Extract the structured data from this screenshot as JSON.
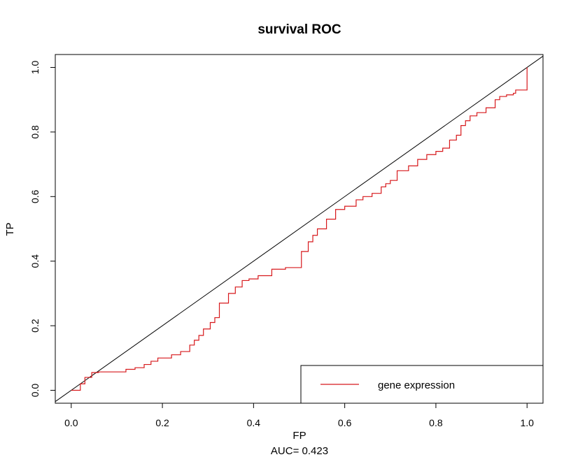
{
  "chart_data": {
    "type": "line",
    "title": "survival ROC",
    "xlabel": "FP",
    "ylabel": "TP",
    "subtitle": "AUC= 0.423",
    "xlim": [
      -0.035,
      1.035
    ],
    "ylim": [
      -0.04,
      1.04
    ],
    "x_ticks": [
      0.0,
      0.2,
      0.4,
      0.6,
      0.8,
      1.0
    ],
    "x_tick_labels": [
      "0.0",
      "0.2",
      "0.4",
      "0.6",
      "0.8",
      "1.0"
    ],
    "y_ticks": [
      0.0,
      0.2,
      0.4,
      0.6,
      0.8,
      1.0
    ],
    "y_tick_labels": [
      "0.0",
      "0.2",
      "0.4",
      "0.6",
      "0.8",
      "1.0"
    ],
    "grid": false,
    "legend": {
      "placement": "bottom-right",
      "entries": [
        {
          "label": "gene expression",
          "color": "#d7191c"
        }
      ]
    },
    "reference_line": {
      "x": [
        0,
        1
      ],
      "y": [
        0,
        1
      ],
      "color": "#000000"
    },
    "series": [
      {
        "name": "gene expression",
        "color": "#d7191c",
        "x": [
          0.0,
          0.02,
          0.02,
          0.03,
          0.03,
          0.045,
          0.045,
          0.06,
          0.06,
          0.12,
          0.12,
          0.14,
          0.14,
          0.16,
          0.16,
          0.175,
          0.175,
          0.19,
          0.19,
          0.22,
          0.22,
          0.24,
          0.24,
          0.26,
          0.26,
          0.27,
          0.27,
          0.28,
          0.28,
          0.29,
          0.29,
          0.305,
          0.305,
          0.315,
          0.315,
          0.325,
          0.325,
          0.345,
          0.345,
          0.36,
          0.36,
          0.375,
          0.375,
          0.39,
          0.39,
          0.41,
          0.41,
          0.44,
          0.44,
          0.47,
          0.47,
          0.505,
          0.505,
          0.52,
          0.52,
          0.53,
          0.53,
          0.54,
          0.54,
          0.56,
          0.56,
          0.58,
          0.58,
          0.6,
          0.6,
          0.625,
          0.625,
          0.64,
          0.64,
          0.66,
          0.66,
          0.68,
          0.68,
          0.69,
          0.69,
          0.7,
          0.7,
          0.715,
          0.715,
          0.74,
          0.74,
          0.76,
          0.76,
          0.78,
          0.78,
          0.8,
          0.8,
          0.815,
          0.815,
          0.83,
          0.83,
          0.845,
          0.845,
          0.855,
          0.855,
          0.865,
          0.865,
          0.875,
          0.875,
          0.89,
          0.89,
          0.91,
          0.91,
          0.93,
          0.93,
          0.94,
          0.94,
          0.955,
          0.955,
          0.97,
          0.97,
          0.975,
          0.975,
          1.0,
          1.0
        ],
        "y": [
          0.0,
          0.0,
          0.02,
          0.02,
          0.04,
          0.04,
          0.055,
          0.055,
          0.057,
          0.057,
          0.065,
          0.065,
          0.07,
          0.07,
          0.08,
          0.08,
          0.09,
          0.09,
          0.1,
          0.1,
          0.11,
          0.11,
          0.12,
          0.12,
          0.14,
          0.14,
          0.155,
          0.155,
          0.17,
          0.17,
          0.19,
          0.19,
          0.21,
          0.21,
          0.225,
          0.225,
          0.27,
          0.27,
          0.3,
          0.3,
          0.32,
          0.32,
          0.34,
          0.34,
          0.345,
          0.345,
          0.355,
          0.355,
          0.375,
          0.375,
          0.38,
          0.38,
          0.43,
          0.43,
          0.46,
          0.46,
          0.48,
          0.48,
          0.5,
          0.5,
          0.53,
          0.53,
          0.56,
          0.56,
          0.57,
          0.57,
          0.59,
          0.59,
          0.6,
          0.6,
          0.61,
          0.61,
          0.63,
          0.63,
          0.64,
          0.64,
          0.65,
          0.65,
          0.68,
          0.68,
          0.695,
          0.695,
          0.715,
          0.715,
          0.73,
          0.73,
          0.74,
          0.74,
          0.75,
          0.75,
          0.775,
          0.775,
          0.79,
          0.79,
          0.82,
          0.82,
          0.835,
          0.835,
          0.85,
          0.85,
          0.86,
          0.86,
          0.875,
          0.875,
          0.9,
          0.9,
          0.91,
          0.91,
          0.915,
          0.915,
          0.92,
          0.92,
          0.93,
          0.93,
          1.0
        ]
      }
    ]
  }
}
